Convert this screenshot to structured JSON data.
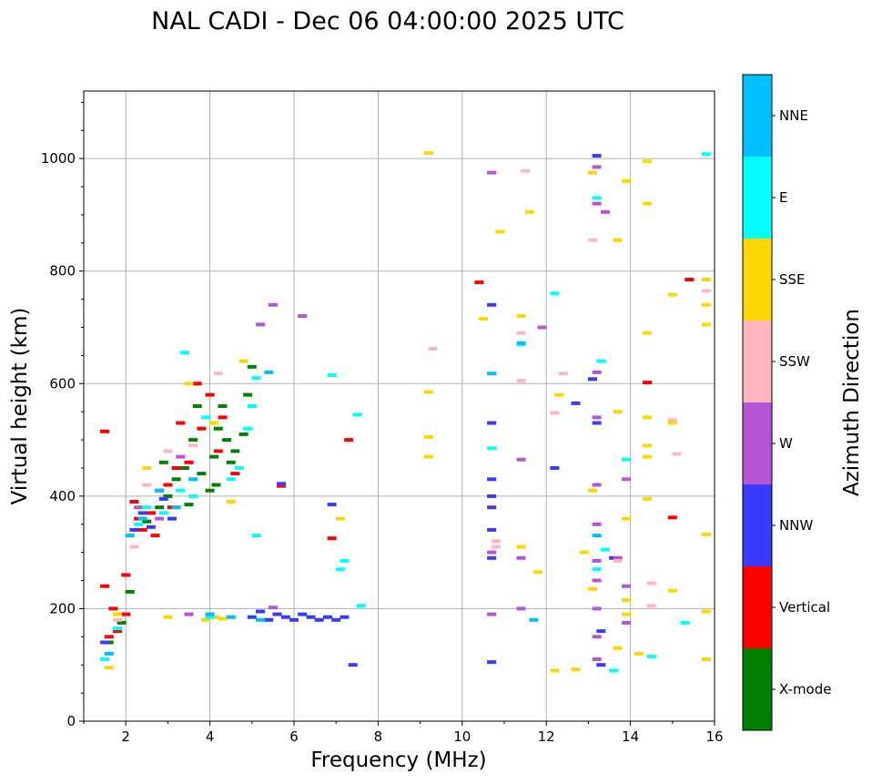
{
  "chart_data": {
    "type": "scatter",
    "title": "NAL CADI - Dec 06 04:00:00 2025 UTC",
    "xlabel": "Frequency (MHz)",
    "ylabel": "Virtual height (km)",
    "xlim": [
      1,
      16
    ],
    "ylim": [
      0,
      1120
    ],
    "x_ticks": [
      2,
      4,
      6,
      8,
      10,
      12,
      14,
      16
    ],
    "y_ticks": [
      0,
      200,
      400,
      600,
      800,
      1000
    ],
    "grid": true,
    "colorbar": {
      "label": "Azimuth Direction",
      "categories": [
        "X-mode",
        "Vertical",
        "NNW",
        "W",
        "SSW",
        "SSE",
        "E",
        "NNE"
      ],
      "colors": [
        "#008000",
        "#ff0000",
        "#3a3aff",
        "#b455d6",
        "#ffb6c1",
        "#ffd700",
        "#00ffff",
        "#00bfff"
      ]
    },
    "series": [
      {
        "name": "X-mode",
        "points": [
          [
            1.6,
            140
          ],
          [
            1.9,
            175
          ],
          [
            2.1,
            230
          ],
          [
            2.5,
            355
          ],
          [
            2.8,
            380
          ],
          [
            3.0,
            400
          ],
          [
            3.2,
            430
          ],
          [
            3.4,
            450
          ],
          [
            3.6,
            500
          ],
          [
            3.8,
            440
          ],
          [
            4.0,
            410
          ],
          [
            4.1,
            470
          ],
          [
            4.2,
            520
          ],
          [
            4.3,
            560
          ],
          [
            4.4,
            500
          ],
          [
            4.5,
            460
          ],
          [
            4.6,
            480
          ],
          [
            4.8,
            510
          ],
          [
            4.9,
            580
          ],
          [
            5.0,
            630
          ],
          [
            3.7,
            560
          ],
          [
            2.9,
            460
          ],
          [
            3.5,
            385
          ],
          [
            4.15,
            420
          ]
        ]
      },
      {
        "name": "Vertical",
        "points": [
          [
            1.5,
            240
          ],
          [
            1.5,
            515
          ],
          [
            1.6,
            150
          ],
          [
            1.7,
            200
          ],
          [
            1.8,
            160
          ],
          [
            2.0,
            260
          ],
          [
            2.0,
            190
          ],
          [
            2.2,
            390
          ],
          [
            2.3,
            360
          ],
          [
            2.4,
            340
          ],
          [
            2.6,
            370
          ],
          [
            2.7,
            330
          ],
          [
            2.8,
            410
          ],
          [
            3.0,
            420
          ],
          [
            3.1,
            380
          ],
          [
            3.2,
            450
          ],
          [
            3.3,
            530
          ],
          [
            3.5,
            460
          ],
          [
            3.8,
            520
          ],
          [
            4.0,
            580
          ],
          [
            4.2,
            480
          ],
          [
            4.3,
            540
          ],
          [
            4.6,
            440
          ],
          [
            5.7,
            418
          ],
          [
            6.9,
            325
          ],
          [
            7.3,
            500
          ],
          [
            10.4,
            780
          ],
          [
            15.0,
            362
          ],
          [
            15.4,
            785
          ],
          [
            14.4,
            602
          ],
          [
            3.7,
            600
          ]
        ]
      },
      {
        "name": "NNW",
        "points": [
          [
            1.5,
            140
          ],
          [
            2.2,
            340
          ],
          [
            2.4,
            370
          ],
          [
            2.6,
            345
          ],
          [
            2.9,
            395
          ],
          [
            3.1,
            360
          ],
          [
            5.0,
            185
          ],
          [
            5.2,
            195
          ],
          [
            5.4,
            180
          ],
          [
            5.6,
            190
          ],
          [
            5.8,
            185
          ],
          [
            6.0,
            180
          ],
          [
            6.2,
            190
          ],
          [
            6.4,
            185
          ],
          [
            6.6,
            180
          ],
          [
            6.8,
            185
          ],
          [
            7.0,
            180
          ],
          [
            7.2,
            185
          ],
          [
            5.7,
            422
          ],
          [
            6.9,
            385
          ],
          [
            10.7,
            400
          ],
          [
            10.7,
            430
          ],
          [
            10.7,
            380
          ],
          [
            10.7,
            340
          ],
          [
            10.7,
            290
          ],
          [
            10.7,
            530
          ],
          [
            10.7,
            740
          ],
          [
            10.7,
            105
          ],
          [
            12.2,
            450
          ],
          [
            12.7,
            565
          ],
          [
            13.1,
            608
          ],
          [
            13.2,
            1005
          ],
          [
            13.2,
            530
          ],
          [
            13.3,
            100
          ],
          [
            13.3,
            160
          ],
          [
            13.6,
            290
          ],
          [
            7.4,
            100
          ]
        ]
      },
      {
        "name": "W",
        "points": [
          [
            2.3,
            380
          ],
          [
            2.8,
            360
          ],
          [
            3.3,
            470
          ],
          [
            3.5,
            190
          ],
          [
            5.5,
            202
          ],
          [
            6.2,
            720
          ],
          [
            5.2,
            705
          ],
          [
            10.7,
            975
          ],
          [
            10.7,
            190
          ],
          [
            10.7,
            300
          ],
          [
            11.4,
            290
          ],
          [
            11.4,
            200
          ],
          [
            11.4,
            465
          ],
          [
            11.9,
            700
          ],
          [
            13.2,
            985
          ],
          [
            13.2,
            920
          ],
          [
            13.4,
            905
          ],
          [
            13.2,
            420
          ],
          [
            13.2,
            350
          ],
          [
            13.2,
            250
          ],
          [
            13.2,
            200
          ],
          [
            13.2,
            150
          ],
          [
            13.2,
            110
          ],
          [
            13.7,
            290
          ],
          [
            13.9,
            430
          ],
          [
            13.9,
            240
          ],
          [
            13.9,
            175
          ],
          [
            13.2,
            540
          ],
          [
            13.2,
            285
          ],
          [
            13.2,
            620
          ],
          [
            5.5,
            740
          ]
        ]
      },
      {
        "name": "SSW",
        "points": [
          [
            1.8,
            180
          ],
          [
            2.2,
            310
          ],
          [
            2.5,
            420
          ],
          [
            3.0,
            480
          ],
          [
            3.6,
            490
          ],
          [
            4.2,
            618
          ],
          [
            10.8,
            310
          ],
          [
            11.4,
            690
          ],
          [
            11.4,
            605
          ],
          [
            12.4,
            618
          ],
          [
            12.2,
            548
          ],
          [
            14.5,
            205
          ],
          [
            14.5,
            245
          ],
          [
            15.1,
            475
          ],
          [
            15.0,
            535
          ],
          [
            15.8,
            765
          ],
          [
            9.3,
            662
          ],
          [
            11.5,
            978
          ],
          [
            13.1,
            855
          ],
          [
            13.7,
            285
          ],
          [
            10.8,
            320
          ]
        ]
      },
      {
        "name": "SSE",
        "points": [
          [
            1.6,
            95
          ],
          [
            1.8,
            190
          ],
          [
            2.5,
            450
          ],
          [
            3.0,
            185
          ],
          [
            3.5,
            600
          ],
          [
            3.9,
            180
          ],
          [
            4.1,
            185
          ],
          [
            4.3,
            182
          ],
          [
            4.5,
            185
          ],
          [
            4.1,
            530
          ],
          [
            4.5,
            390
          ],
          [
            4.8,
            640
          ],
          [
            7.1,
            360
          ],
          [
            9.2,
            1010
          ],
          [
            9.2,
            585
          ],
          [
            9.2,
            505
          ],
          [
            9.2,
            470
          ],
          [
            10.5,
            715
          ],
          [
            10.9,
            870
          ],
          [
            11.4,
            720
          ],
          [
            11.6,
            905
          ],
          [
            11.4,
            310
          ],
          [
            11.8,
            265
          ],
          [
            12.2,
            90
          ],
          [
            12.3,
            580
          ],
          [
            12.7,
            92
          ],
          [
            12.9,
            300
          ],
          [
            13.1,
            975
          ],
          [
            13.1,
            410
          ],
          [
            13.7,
            855
          ],
          [
            13.7,
            550
          ],
          [
            13.9,
            960
          ],
          [
            13.9,
            360
          ],
          [
            13.9,
            215
          ],
          [
            13.9,
            190
          ],
          [
            13.7,
            130
          ],
          [
            14.2,
            120
          ],
          [
            14.4,
            995
          ],
          [
            14.4,
            920
          ],
          [
            14.4,
            690
          ],
          [
            14.4,
            540
          ],
          [
            14.4,
            490
          ],
          [
            14.4,
            470
          ],
          [
            14.4,
            395
          ],
          [
            15.0,
            530
          ],
          [
            15.0,
            758
          ],
          [
            15.0,
            232
          ],
          [
            15.8,
            785
          ],
          [
            15.8,
            740
          ],
          [
            15.8,
            705
          ],
          [
            15.8,
            332
          ],
          [
            15.8,
            195
          ],
          [
            15.8,
            110
          ],
          [
            13.1,
            235
          ]
        ]
      },
      {
        "name": "E",
        "points": [
          [
            1.5,
            110
          ],
          [
            1.8,
            165
          ],
          [
            2.3,
            350
          ],
          [
            2.5,
            380
          ],
          [
            2.9,
            370
          ],
          [
            3.3,
            410
          ],
          [
            3.6,
            400
          ],
          [
            3.9,
            540
          ],
          [
            4.5,
            430
          ],
          [
            4.7,
            450
          ],
          [
            4.9,
            520
          ],
          [
            5.0,
            560
          ],
          [
            5.1,
            610
          ],
          [
            4.0,
            185
          ],
          [
            3.4,
            655
          ],
          [
            5.1,
            330
          ],
          [
            6.9,
            615
          ],
          [
            7.1,
            270
          ],
          [
            7.2,
            285
          ],
          [
            7.5,
            545
          ],
          [
            7.6,
            205
          ],
          [
            10.7,
            485
          ],
          [
            11.4,
            670
          ],
          [
            12.2,
            760
          ],
          [
            13.3,
            640
          ],
          [
            13.2,
            930
          ],
          [
            13.2,
            270
          ],
          [
            13.4,
            305
          ],
          [
            13.6,
            90
          ],
          [
            14.5,
            115
          ],
          [
            15.3,
            175
          ],
          [
            15.8,
            1008
          ],
          [
            13.9,
            465
          ]
        ]
      },
      {
        "name": "NNE",
        "points": [
          [
            1.6,
            120
          ],
          [
            2.1,
            330
          ],
          [
            2.4,
            360
          ],
          [
            2.8,
            410
          ],
          [
            3.2,
            380
          ],
          [
            3.6,
            430
          ],
          [
            4.0,
            190
          ],
          [
            4.5,
            185
          ],
          [
            5.2,
            180
          ],
          [
            5.4,
            620
          ],
          [
            10.7,
            618
          ],
          [
            11.4,
            672
          ],
          [
            11.7,
            180
          ],
          [
            13.2,
            330
          ]
        ]
      }
    ]
  }
}
